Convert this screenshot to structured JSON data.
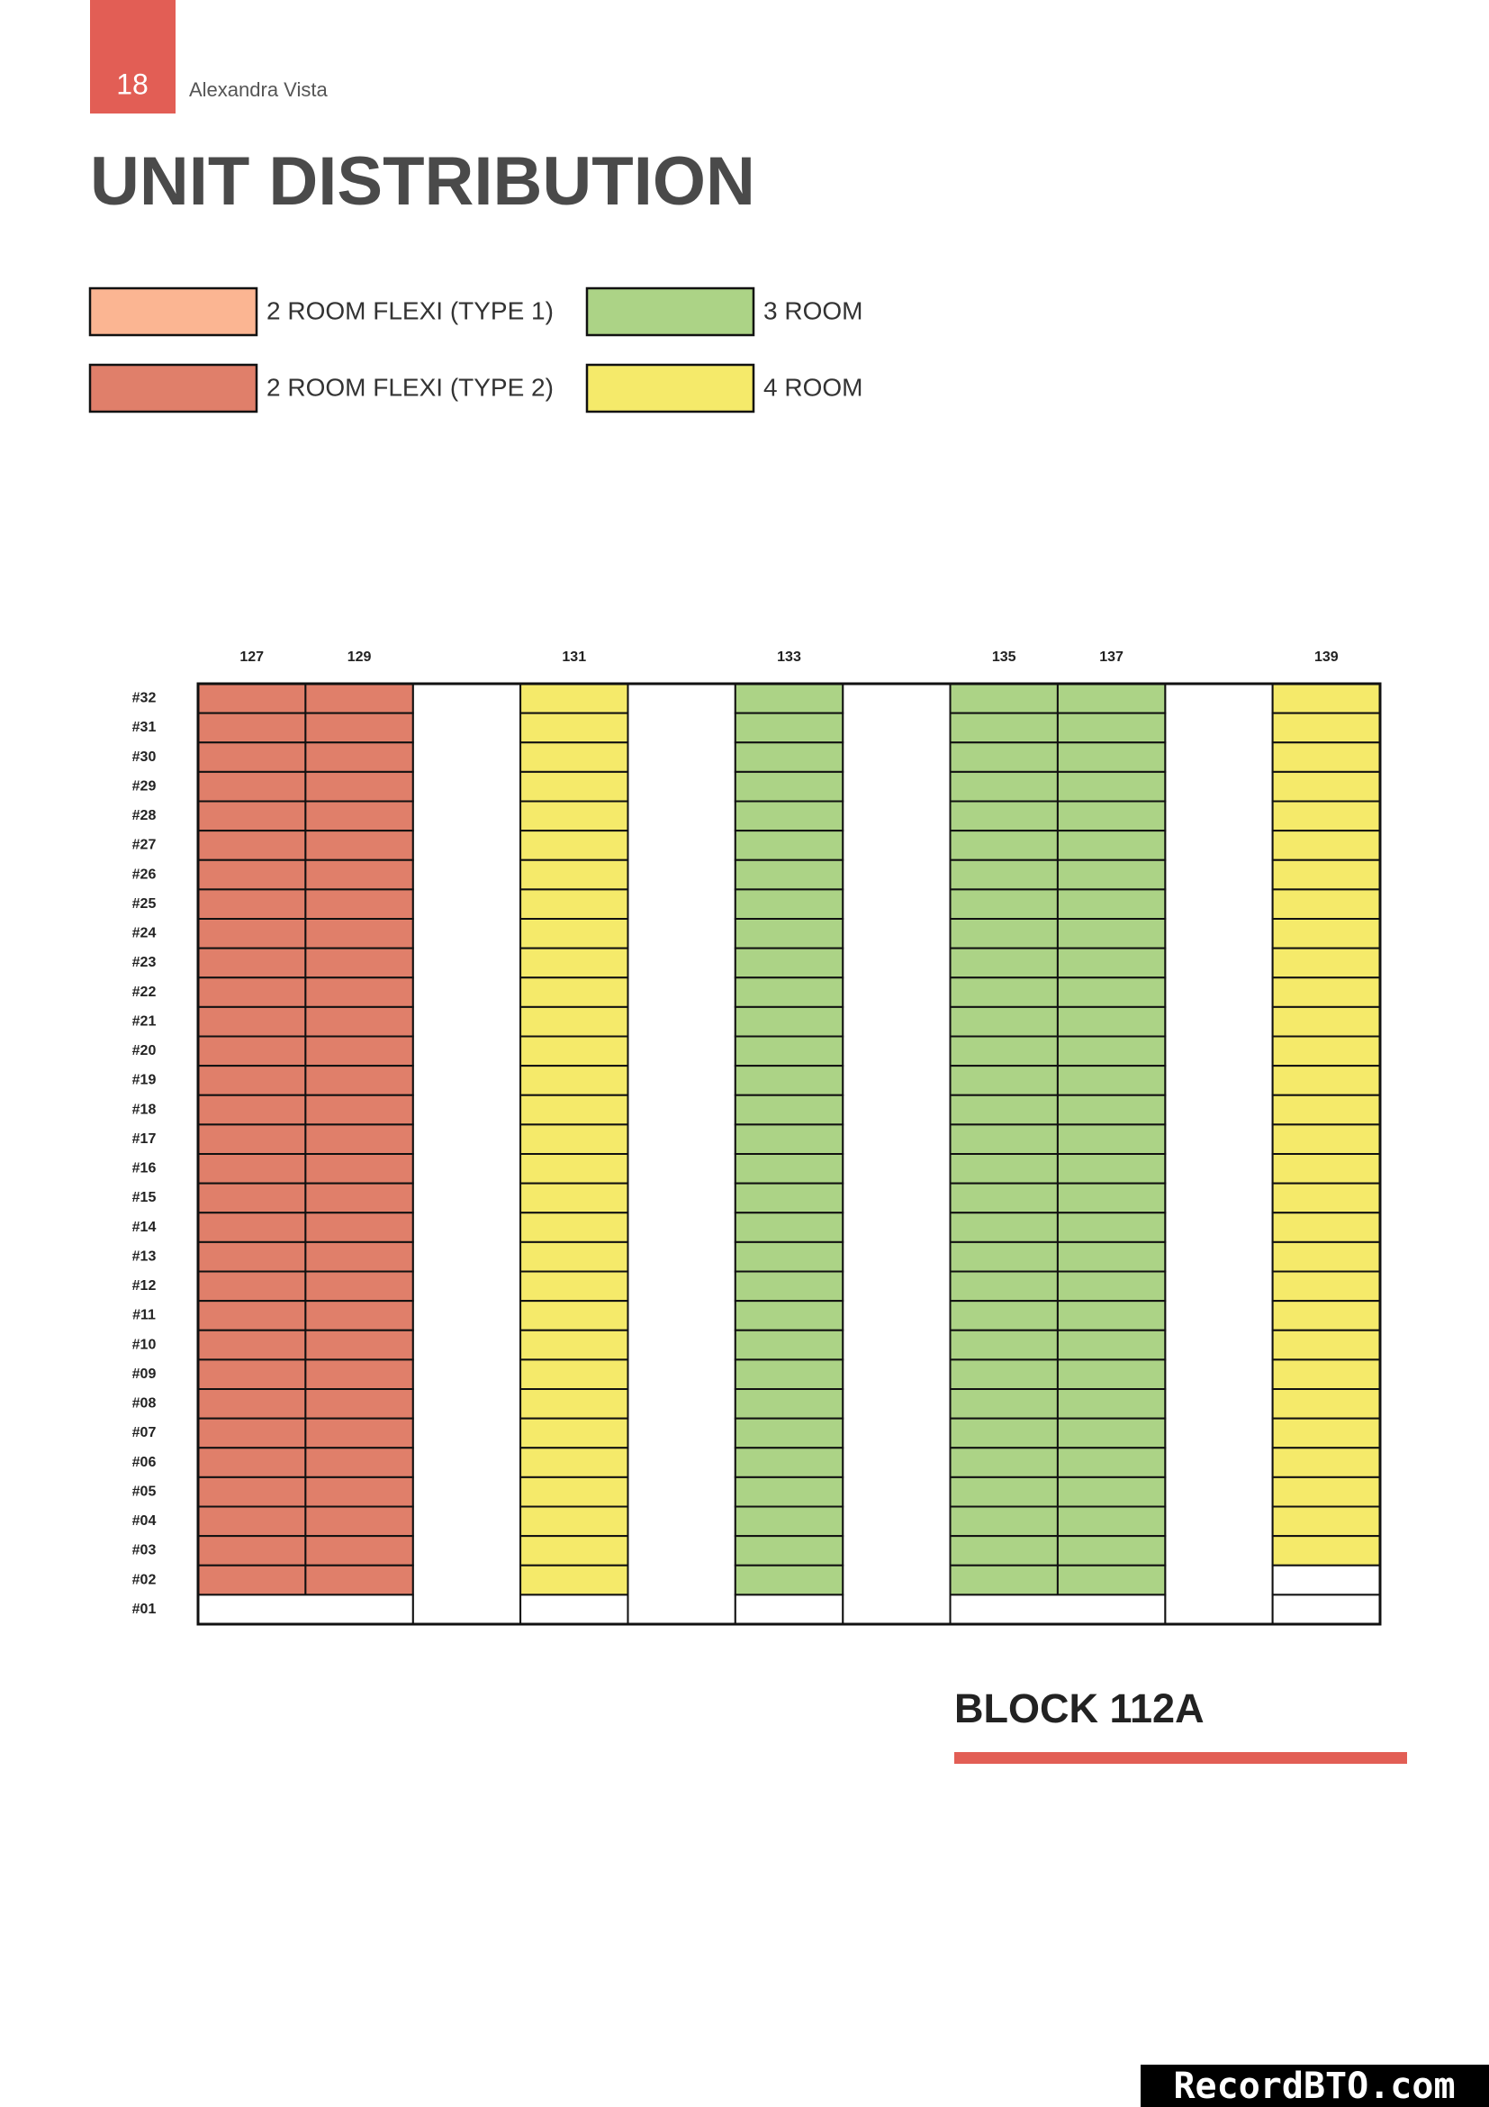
{
  "header": {
    "page_number": "18",
    "project": "Alexandra Vista"
  },
  "title": "UNIT DISTRIBUTION",
  "legend": [
    {
      "label": "2 ROOM FLEXI (TYPE 1)",
      "color": "#fbb592"
    },
    {
      "label": "3 ROOM",
      "color": "#acd386"
    },
    {
      "label": "2 ROOM FLEXI (TYPE 2)",
      "color": "#e07f6a"
    },
    {
      "label": "4 ROOM",
      "color": "#f5ea6a"
    }
  ],
  "floors": [
    "#32",
    "#31",
    "#30",
    "#29",
    "#28",
    "#27",
    "#26",
    "#25",
    "#24",
    "#23",
    "#22",
    "#21",
    "#20",
    "#19",
    "#18",
    "#17",
    "#16",
    "#15",
    "#14",
    "#13",
    "#12",
    "#11",
    "#10",
    "#09",
    "#08",
    "#07",
    "#06",
    "#05",
    "#04",
    "#03",
    "#02",
    "#01"
  ],
  "stacks": [
    {
      "label": "127",
      "color": "#e07f6a",
      "units": 31
    },
    {
      "label": "129",
      "color": "#e07f6a",
      "units": 31
    },
    {
      "label": "131",
      "color": "#f5ea6a",
      "units": 31
    },
    {
      "label": "133",
      "color": "#acd386",
      "units": 31
    },
    {
      "label": "135",
      "color": "#acd386",
      "units": 31
    },
    {
      "label": "137",
      "color": "#acd386",
      "units": 31
    },
    {
      "label": "139",
      "color": "#f5ea6a",
      "units": 30
    }
  ],
  "block": "BLOCK 112A",
  "watermark": "RecordBTO.com"
}
